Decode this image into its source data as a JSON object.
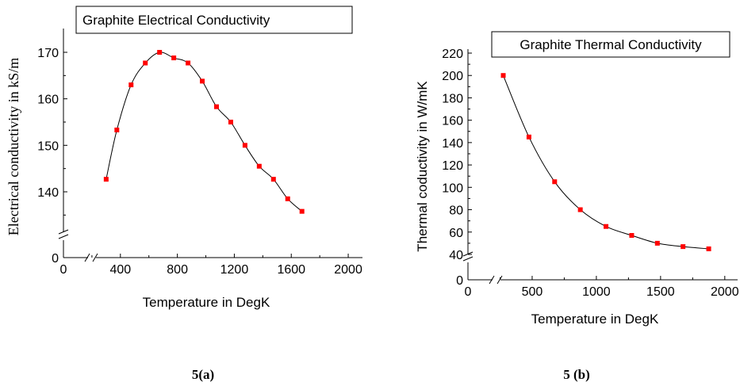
{
  "chart_data": [
    {
      "type": "line",
      "title": "Graphite Electrical Conductivity",
      "xlabel": "Temperature in DegK",
      "ylabel": "Electrical conductivity in kS/m",
      "xlim": [
        0,
        2100
      ],
      "xticks": [
        "0",
        "400",
        "800",
        "1200",
        "1600",
        "2000"
      ],
      "yticks": [
        "0",
        "140",
        "150",
        "160",
        "170"
      ],
      "axis_break": true,
      "marker_color": "#ff0000",
      "caption": "5(a)",
      "x": [
        300,
        375,
        475,
        575,
        675,
        775,
        875,
        975,
        1075,
        1175,
        1275,
        1375,
        1475,
        1575,
        1675
      ],
      "y": [
        142.7,
        153.3,
        163.0,
        167.7,
        170.0,
        168.8,
        167.7,
        163.8,
        158.3,
        155.0,
        150.0,
        145.5,
        142.7,
        138.5,
        135.8
      ]
    },
    {
      "type": "line",
      "title": "Graphite Thermal Conductivity",
      "xlabel": "Temperature in DegK",
      "ylabel": "Thermal coductivity in W/mK",
      "xlim": [
        0,
        2100
      ],
      "xticks": [
        "0",
        "500",
        "1000",
        "1500",
        "2000"
      ],
      "yticks": [
        "0",
        "40",
        "60",
        "80",
        "100",
        "120",
        "140",
        "160",
        "180",
        "200",
        "220"
      ],
      "axis_break": true,
      "marker_color": "#ff0000",
      "caption": "5 (b)",
      "x": [
        275,
        475,
        675,
        875,
        1075,
        1275,
        1475,
        1675,
        1875
      ],
      "y": [
        200,
        145,
        105,
        80,
        65,
        57,
        50,
        47,
        45
      ]
    }
  ]
}
